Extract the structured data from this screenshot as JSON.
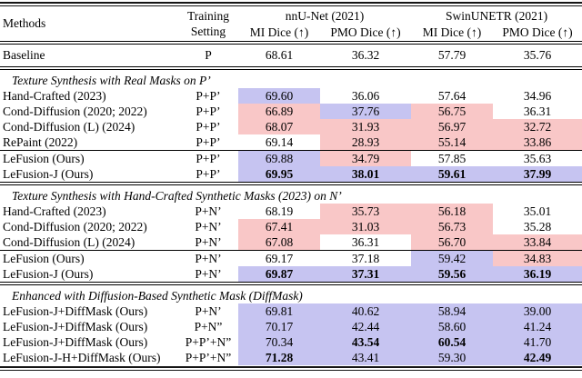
{
  "table": {
    "colors": {
      "better": "#c6c4f1",
      "worse": "#f9c7c7"
    },
    "header": {
      "methods": "Methods",
      "training_line1": "Training",
      "training_line2": "Setting",
      "groups": [
        {
          "label": "nnU-Net (2021)",
          "sub": [
            "MI Dice (↑)",
            "PMO Dice (↑)"
          ]
        },
        {
          "label": "SwinUNETR (2021)",
          "sub": [
            "MI Dice (↑)",
            "PMO Dice (↑)"
          ]
        }
      ]
    },
    "baseline": {
      "method": "Baseline",
      "setting": "P",
      "cells": [
        {
          "v": "68.61"
        },
        {
          "v": "36.32"
        },
        {
          "v": "57.79"
        },
        {
          "v": "35.76"
        }
      ]
    },
    "sections": [
      {
        "title": "Texture Synthesis with Real Masks on P’",
        "groups": [
          {
            "rows": [
              {
                "method": "Hand-Crafted (2023)",
                "setting": "P+P’",
                "cells": [
                  {
                    "v": "69.60",
                    "hl": "blue"
                  },
                  {
                    "v": "36.06"
                  },
                  {
                    "v": "57.64"
                  },
                  {
                    "v": "34.96"
                  }
                ]
              },
              {
                "method": "Cond-Diffusion (2020; 2022)",
                "setting": "P+P’",
                "cells": [
                  {
                    "v": "66.89",
                    "hl": "red"
                  },
                  {
                    "v": "37.76",
                    "hl": "blue"
                  },
                  {
                    "v": "56.75",
                    "hl": "red"
                  },
                  {
                    "v": "36.31"
                  }
                ]
              },
              {
                "method": "Cond-Diffusion (L) (2024)",
                "setting": "P+P’",
                "cells": [
                  {
                    "v": "68.07",
                    "hl": "red"
                  },
                  {
                    "v": "31.93",
                    "hl": "red"
                  },
                  {
                    "v": "56.97",
                    "hl": "red"
                  },
                  {
                    "v": "32.72",
                    "hl": "red"
                  }
                ]
              },
              {
                "method": "RePaint (2022)",
                "setting": "P+P’",
                "cells": [
                  {
                    "v": "69.14"
                  },
                  {
                    "v": "28.93",
                    "hl": "red"
                  },
                  {
                    "v": "55.14",
                    "hl": "red"
                  },
                  {
                    "v": "33.86",
                    "hl": "red"
                  }
                ]
              }
            ]
          },
          {
            "rows": [
              {
                "method": "LeFusion (Ours)",
                "setting": "P+P’",
                "cells": [
                  {
                    "v": "69.88",
                    "hl": "blue"
                  },
                  {
                    "v": "34.79",
                    "hl": "red"
                  },
                  {
                    "v": "57.85"
                  },
                  {
                    "v": "35.63"
                  }
                ]
              },
              {
                "method": "LeFusion-J (Ours)",
                "setting": "P+P’",
                "cells": [
                  {
                    "v": "69.95",
                    "hl": "blue",
                    "bold": true
                  },
                  {
                    "v": "38.01",
                    "hl": "blue",
                    "bold": true
                  },
                  {
                    "v": "59.61",
                    "hl": "blue",
                    "bold": true
                  },
                  {
                    "v": "37.99",
                    "hl": "blue",
                    "bold": true
                  }
                ]
              }
            ]
          }
        ]
      },
      {
        "title": "Texture Synthesis with Hand-Crafted Synthetic Masks (2023) on N’",
        "groups": [
          {
            "rows": [
              {
                "method": "Hand-Crafted (2023)",
                "setting": "P+N’",
                "cells": [
                  {
                    "v": "68.19"
                  },
                  {
                    "v": "35.73",
                    "hl": "red"
                  },
                  {
                    "v": "56.18",
                    "hl": "red"
                  },
                  {
                    "v": "35.01"
                  }
                ]
              },
              {
                "method": "Cond-Diffusion (2020; 2022)",
                "setting": "P+N’",
                "cells": [
                  {
                    "v": "67.41",
                    "hl": "red"
                  },
                  {
                    "v": "31.03",
                    "hl": "red"
                  },
                  {
                    "v": "56.73",
                    "hl": "red"
                  },
                  {
                    "v": "35.28"
                  }
                ]
              },
              {
                "method": "Cond-Diffusion (L) (2024)",
                "setting": "P+N’",
                "cells": [
                  {
                    "v": "67.08",
                    "hl": "red"
                  },
                  {
                    "v": "36.31"
                  },
                  {
                    "v": "56.70",
                    "hl": "red"
                  },
                  {
                    "v": "33.84",
                    "hl": "red"
                  }
                ]
              }
            ]
          },
          {
            "rows": [
              {
                "method": "LeFusion (Ours)",
                "setting": "P+N’",
                "cells": [
                  {
                    "v": "69.17"
                  },
                  {
                    "v": "37.18"
                  },
                  {
                    "v": "59.42",
                    "hl": "blue"
                  },
                  {
                    "v": "34.83",
                    "hl": "red"
                  }
                ]
              },
              {
                "method": "LeFusion-J (Ours)",
                "setting": "P+N’",
                "cells": [
                  {
                    "v": "69.87",
                    "hl": "blue",
                    "bold": true
                  },
                  {
                    "v": "37.31",
                    "hl": "blue",
                    "bold": true
                  },
                  {
                    "v": "59.56",
                    "hl": "blue",
                    "bold": true
                  },
                  {
                    "v": "36.19",
                    "hl": "blue",
                    "bold": true
                  }
                ]
              }
            ]
          }
        ]
      },
      {
        "title": "Enhanced with Diffusion-Based Synthetic Mask (DiffMask)",
        "groups": [
          {
            "rows": [
              {
                "method": "LeFusion-J+DiffMask (Ours)",
                "setting": "P+N’",
                "cells": [
                  {
                    "v": "69.81",
                    "hl": "blue"
                  },
                  {
                    "v": "40.62",
                    "hl": "blue"
                  },
                  {
                    "v": "58.94",
                    "hl": "blue"
                  },
                  {
                    "v": "39.00",
                    "hl": "blue"
                  }
                ]
              },
              {
                "method": "LeFusion-J+DiffMask (Ours)",
                "setting": "P+N”",
                "cells": [
                  {
                    "v": "70.17",
                    "hl": "blue"
                  },
                  {
                    "v": "42.44",
                    "hl": "blue"
                  },
                  {
                    "v": "58.60",
                    "hl": "blue"
                  },
                  {
                    "v": "41.24",
                    "hl": "blue"
                  }
                ]
              },
              {
                "method": "LeFusion-J+DiffMask (Ours)",
                "setting": "P+P’+N”",
                "cells": [
                  {
                    "v": "70.34",
                    "hl": "blue"
                  },
                  {
                    "v": "43.54",
                    "hl": "blue",
                    "bold": true
                  },
                  {
                    "v": "60.54",
                    "hl": "blue",
                    "bold": true
                  },
                  {
                    "v": "41.70",
                    "hl": "blue"
                  }
                ]
              },
              {
                "method": "LeFusion-J-H+DiffMask (Ours)",
                "setting": "P+P’+N”",
                "cells": [
                  {
                    "v": "71.28",
                    "hl": "blue",
                    "bold": true
                  },
                  {
                    "v": "43.41",
                    "hl": "blue"
                  },
                  {
                    "v": "59.30",
                    "hl": "blue"
                  },
                  {
                    "v": "42.49",
                    "hl": "blue",
                    "bold": true
                  }
                ]
              }
            ]
          }
        ]
      }
    ]
  }
}
